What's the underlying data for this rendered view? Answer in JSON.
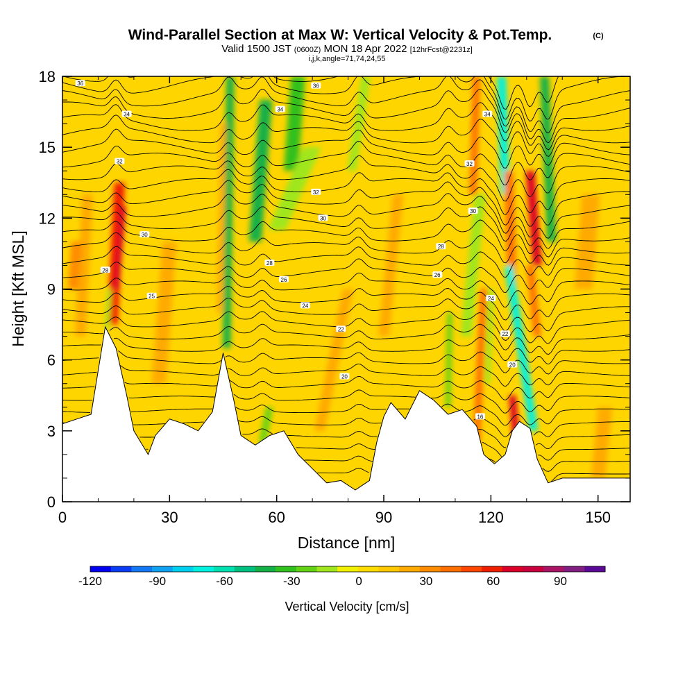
{
  "title": {
    "main": "Wind-Parallel Section at Max W: Vertical Velocity & Pot.Temp.",
    "main_suffix": "(C)",
    "sub_a": "Valid 1500 JST",
    "sub_b": "(0600Z)",
    "sub_c": "MON 18 Apr 2022",
    "sub_d": "[12hrFcst@2231z]",
    "sub2": "i,j,k,angle=71,74,24,55"
  },
  "chart_data": {
    "type": "heatmap",
    "xlabel": "Distance [nm]",
    "ylabel": "Height [Kft MSL]",
    "xlim": [
      0,
      159
    ],
    "ylim": [
      0,
      18
    ],
    "xticks": [
      "0",
      "30",
      "60",
      "90",
      "120",
      "150"
    ],
    "yticks": [
      "0",
      "3",
      "6",
      "9",
      "12",
      "15",
      "18"
    ],
    "colorbar": {
      "label": "Vertical Velocity [cm/s]",
      "min": -120,
      "max": 110,
      "ticks": [
        "-120",
        "-90",
        "-60",
        "-30",
        "0",
        "30",
        "60",
        "90"
      ],
      "colors": [
        "#0000f0",
        "#0a3cf5",
        "#1478f5",
        "#10a0f0",
        "#00d0f0",
        "#00f0e0",
        "#00e0b0",
        "#00c080",
        "#14b046",
        "#32c01e",
        "#64d214",
        "#a0e61e",
        "#f0f000",
        "#ffdc00",
        "#ffc800",
        "#ffaa00",
        "#ff8c00",
        "#ff6e00",
        "#ff4600",
        "#f01e00",
        "#dc0028",
        "#c8003c",
        "#aa1464",
        "#821e82",
        "#5a0a96"
      ]
    },
    "terrain_kft": [
      [
        0,
        3.3
      ],
      [
        4,
        3.5
      ],
      [
        8,
        3.7
      ],
      [
        12,
        7.4
      ],
      [
        15,
        6.5
      ],
      [
        18,
        4.5
      ],
      [
        20,
        3.0
      ],
      [
        22,
        2.5
      ],
      [
        24,
        2.0
      ],
      [
        26,
        2.8
      ],
      [
        30,
        3.5
      ],
      [
        34,
        3.3
      ],
      [
        38,
        3.0
      ],
      [
        42,
        3.8
      ],
      [
        45,
        6.3
      ],
      [
        48,
        4.3
      ],
      [
        50,
        2.8
      ],
      [
        54,
        2.4
      ],
      [
        58,
        2.8
      ],
      [
        62,
        3.0
      ],
      [
        66,
        2.0
      ],
      [
        70,
        1.4
      ],
      [
        74,
        0.8
      ],
      [
        78,
        0.9
      ],
      [
        82,
        0.5
      ],
      [
        86,
        0.9
      ],
      [
        88,
        2.5
      ],
      [
        90,
        3.6
      ],
      [
        92,
        4.2
      ],
      [
        96,
        3.5
      ],
      [
        100,
        4.7
      ],
      [
        104,
        4.3
      ],
      [
        108,
        3.7
      ],
      [
        112,
        3.9
      ],
      [
        116,
        3.2
      ],
      [
        118,
        2.0
      ],
      [
        121,
        1.6
      ],
      [
        124,
        2.0
      ],
      [
        126,
        3.0
      ],
      [
        128,
        3.4
      ],
      [
        131,
        3.1
      ],
      [
        133,
        1.8
      ],
      [
        136,
        0.8
      ],
      [
        140,
        1.0
      ],
      [
        150,
        1.0
      ],
      [
        159,
        1.0
      ]
    ],
    "theta_contours": [
      {
        "label": "16",
        "x": 117,
        "y": 3.6
      },
      {
        "label": "20",
        "x": 79,
        "y": 5.3
      },
      {
        "label": "20",
        "x": 126,
        "y": 5.8
      },
      {
        "label": "22",
        "x": 78,
        "y": 7.3
      },
      {
        "label": "22",
        "x": 124,
        "y": 7.1
      },
      {
        "label": "24",
        "x": 68,
        "y": 8.3
      },
      {
        "label": "24",
        "x": 120,
        "y": 8.6
      },
      {
        "label": "25",
        "x": 25,
        "y": 8.7
      },
      {
        "label": "26",
        "x": 62,
        "y": 9.4
      },
      {
        "label": "26",
        "x": 105,
        "y": 9.6
      },
      {
        "label": "28",
        "x": 12,
        "y": 9.8
      },
      {
        "label": "28",
        "x": 58,
        "y": 10.1
      },
      {
        "label": "28",
        "x": 106,
        "y": 10.8
      },
      {
        "label": "30",
        "x": 23,
        "y": 11.3
      },
      {
        "label": "30",
        "x": 73,
        "y": 12.0
      },
      {
        "label": "30",
        "x": 115,
        "y": 12.3
      },
      {
        "label": "32",
        "x": 16,
        "y": 14.4
      },
      {
        "label": "32",
        "x": 71,
        "y": 13.1
      },
      {
        "label": "32",
        "x": 114,
        "y": 14.3
      },
      {
        "label": "34",
        "x": 18,
        "y": 16.4
      },
      {
        "label": "34",
        "x": 61,
        "y": 16.6
      },
      {
        "label": "34",
        "x": 119,
        "y": 16.4
      },
      {
        "label": "36",
        "x": 5,
        "y": 17.7
      },
      {
        "label": "36",
        "x": 71,
        "y": 17.6
      }
    ]
  }
}
